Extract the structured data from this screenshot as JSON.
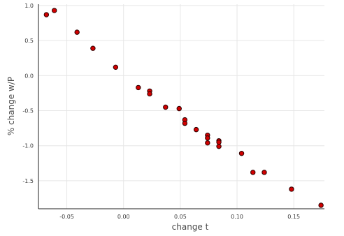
{
  "chart_data": {
    "type": "scatter",
    "title": "",
    "xlabel": "change t",
    "ylabel": "% change w/P",
    "xlim": [
      -0.075,
      0.177
    ],
    "ylim": [
      -1.9,
      1.02
    ],
    "x_ticks": [
      {
        "value": -0.05,
        "label": "-0.05"
      },
      {
        "value": 0.0,
        "label": "0.00"
      },
      {
        "value": 0.05,
        "label": "0.05"
      },
      {
        "value": 0.1,
        "label": "0.10"
      },
      {
        "value": 0.15,
        "label": "0.15"
      }
    ],
    "y_ticks": [
      {
        "value": 1.0,
        "label": "1.0"
      },
      {
        "value": 0.5,
        "label": "0.5"
      },
      {
        "value": 0.0,
        "label": "0.0"
      },
      {
        "value": -0.5,
        "label": "-0.5"
      },
      {
        "value": -1.0,
        "label": "-1.0"
      },
      {
        "value": -1.5,
        "label": "-1.5"
      }
    ],
    "grid": true,
    "legend": "none",
    "marker_color": "#d10000",
    "marker_edge_color": "#2a0000",
    "points": [
      {
        "x": -0.068,
        "y": 0.87
      },
      {
        "x": -0.061,
        "y": 0.93
      },
      {
        "x": -0.041,
        "y": 0.62
      },
      {
        "x": -0.027,
        "y": 0.39
      },
      {
        "x": -0.007,
        "y": 0.12
      },
      {
        "x": 0.013,
        "y": -0.17
      },
      {
        "x": 0.023,
        "y": -0.22
      },
      {
        "x": 0.023,
        "y": -0.26
      },
      {
        "x": 0.037,
        "y": -0.45
      },
      {
        "x": 0.049,
        "y": -0.47
      },
      {
        "x": 0.054,
        "y": -0.63
      },
      {
        "x": 0.054,
        "y": -0.68
      },
      {
        "x": 0.064,
        "y": -0.77
      },
      {
        "x": 0.074,
        "y": -0.85
      },
      {
        "x": 0.074,
        "y": -0.89
      },
      {
        "x": 0.074,
        "y": -0.96
      },
      {
        "x": 0.084,
        "y": -0.93
      },
      {
        "x": 0.084,
        "y": -0.95
      },
      {
        "x": 0.084,
        "y": -1.01
      },
      {
        "x": 0.104,
        "y": -1.11
      },
      {
        "x": 0.114,
        "y": -1.38
      },
      {
        "x": 0.124,
        "y": -1.38
      },
      {
        "x": 0.148,
        "y": -1.62
      },
      {
        "x": 0.174,
        "y": -1.85
      }
    ]
  }
}
